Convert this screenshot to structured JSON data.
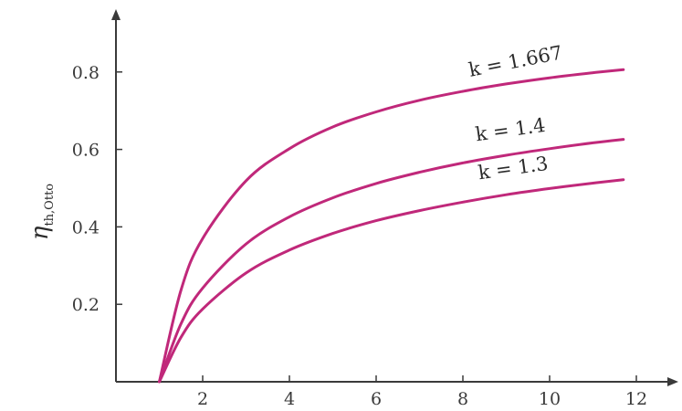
{
  "chart_data": {
    "type": "line",
    "title": "",
    "xlabel": "",
    "ylabel_main": "η",
    "ylabel_sub": "th,Otto",
    "xlim": [
      0,
      12.5
    ],
    "ylim": [
      0,
      0.95
    ],
    "xticks": [
      2,
      4,
      6,
      8,
      10,
      12
    ],
    "xtick_labels": [
      "2",
      "4",
      "6",
      "8",
      "10",
      "12"
    ],
    "yticks": [
      0.2,
      0.4,
      0.6,
      0.8
    ],
    "ytick_labels": [
      "0.2",
      "0.4",
      "0.6",
      "0.8"
    ],
    "grid": false,
    "series": [
      {
        "name": "k = 1.667",
        "color": "#c0287a",
        "x": [
          1,
          1.5,
          2,
          3,
          4,
          5,
          6,
          7,
          8,
          9,
          10,
          11,
          11.7
        ],
        "y": [
          0,
          0.237,
          0.37,
          0.519,
          0.602,
          0.658,
          0.697,
          0.727,
          0.75,
          0.769,
          0.785,
          0.798,
          0.806
        ]
      },
      {
        "name": "k = 1.4",
        "color": "#c0287a",
        "x": [
          1,
          1.5,
          2,
          3,
          4,
          5,
          6,
          7,
          8,
          9,
          10,
          11,
          11.7
        ],
        "y": [
          0,
          0.15,
          0.242,
          0.356,
          0.426,
          0.475,
          0.512,
          0.541,
          0.565,
          0.585,
          0.602,
          0.617,
          0.626
        ]
      },
      {
        "name": "k = 1.3",
        "color": "#c0287a",
        "x": [
          1,
          1.5,
          2,
          3,
          4,
          5,
          6,
          7,
          8,
          9,
          10,
          11,
          11.7
        ],
        "y": [
          0,
          0.115,
          0.188,
          0.281,
          0.34,
          0.383,
          0.416,
          0.442,
          0.464,
          0.483,
          0.499,
          0.513,
          0.522
        ]
      }
    ],
    "curve_labels": [
      "k = 1.667",
      "k = 1.4",
      "k = 1.3"
    ]
  }
}
